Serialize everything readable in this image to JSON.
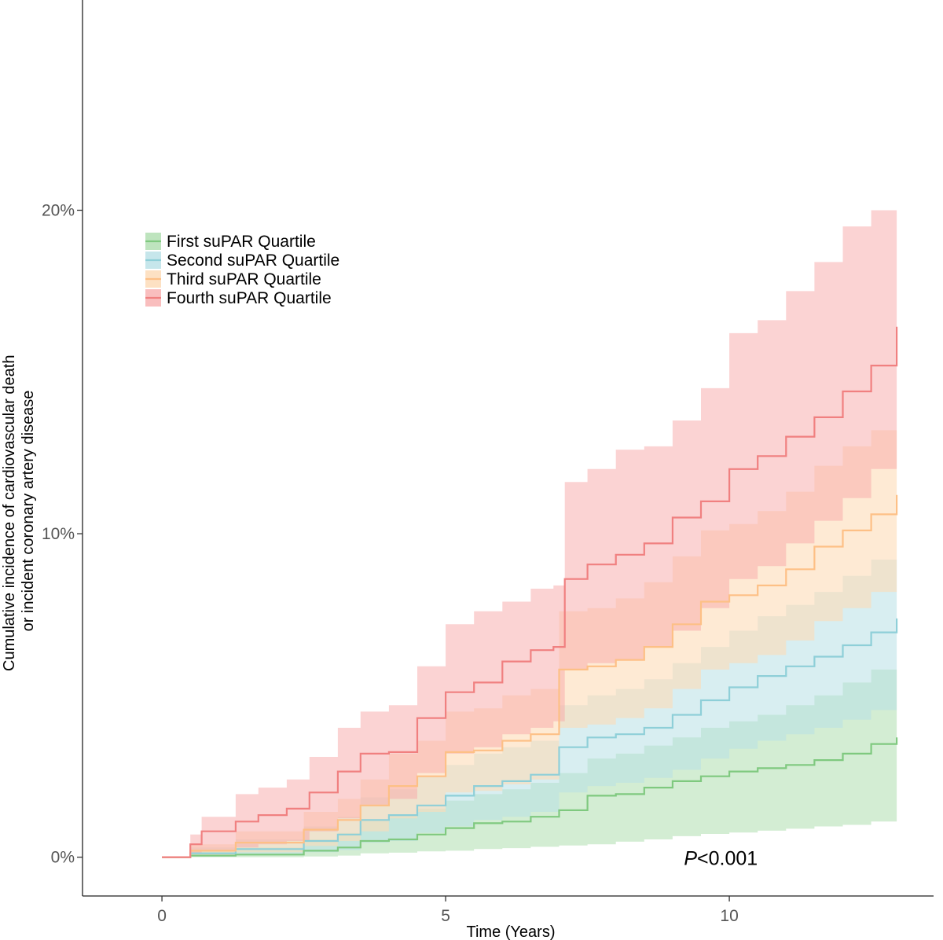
{
  "chart_data": {
    "type": "line",
    "subtype": "cumulative incidence step curves with confidence bands",
    "xlabel": "Time (Years)",
    "ylabel_lines": [
      "Cumulative incidence of cardiovascular death",
      "or incident coronary artery disease"
    ],
    "xlim": [
      -1.4,
      13.6
    ],
    "ylim": [
      -0.012,
      0.265
    ],
    "x_ticks": [
      0,
      5,
      10
    ],
    "x_tick_labels": [
      "0",
      "5",
      "10"
    ],
    "y_ticks": [
      0,
      0.1,
      0.2
    ],
    "y_tick_labels": [
      "0%",
      "10%",
      "20%"
    ],
    "grid": false,
    "legend_position": "top-left",
    "annotation": {
      "italic": "P",
      "rest": "<0.001",
      "x": 9.2,
      "y": 0
    },
    "series": [
      {
        "name": "First suPAR Quartile",
        "color": "#7fc97f",
        "fill": "#a8dba8",
        "fill_opacity": 0.5,
        "x": [
          0,
          0.5,
          1.3,
          2.5,
          3.1,
          3.5,
          4.0,
          4.5,
          5.0,
          5.5,
          6.0,
          6.5,
          7.0,
          7.5,
          8.0,
          8.5,
          9.0,
          9.5,
          10.0,
          10.5,
          11.0,
          11.5,
          12.0,
          12.5,
          12.95
        ],
        "y": [
          0,
          0.0005,
          0.0008,
          0.002,
          0.003,
          0.005,
          0.0055,
          0.007,
          0.009,
          0.0105,
          0.011,
          0.0125,
          0.0145,
          0.019,
          0.0195,
          0.0215,
          0.0235,
          0.025,
          0.0265,
          0.0275,
          0.0285,
          0.03,
          0.032,
          0.035,
          0.037
        ],
        "lower": [
          0,
          0,
          0,
          0.0002,
          0.0005,
          0.0012,
          0.0014,
          0.0018,
          0.002,
          0.0025,
          0.0028,
          0.0032,
          0.0036,
          0.004,
          0.0048,
          0.0055,
          0.0065,
          0.0072,
          0.0076,
          0.0082,
          0.0088,
          0.0095,
          0.01,
          0.011,
          0.0115
        ],
        "upper": [
          0,
          0.002,
          0.003,
          0.0055,
          0.0075,
          0.0115,
          0.013,
          0.015,
          0.0175,
          0.0195,
          0.021,
          0.023,
          0.026,
          0.0305,
          0.032,
          0.0345,
          0.037,
          0.04,
          0.042,
          0.044,
          0.047,
          0.05,
          0.054,
          0.058,
          0.062
        ]
      },
      {
        "name": "Second suPAR Quartile",
        "color": "#8ecfd8",
        "fill": "#b8e0e6",
        "fill_opacity": 0.55,
        "x": [
          0,
          0.5,
          1.3,
          2.5,
          3.1,
          3.5,
          4.0,
          4.5,
          5.0,
          5.5,
          6.0,
          6.5,
          7.0,
          7.5,
          8.0,
          8.5,
          9.0,
          9.5,
          10.0,
          10.5,
          11.0,
          11.5,
          12.0,
          12.5,
          12.95
        ],
        "y": [
          0,
          0.0012,
          0.0025,
          0.005,
          0.007,
          0.0115,
          0.013,
          0.016,
          0.019,
          0.022,
          0.0235,
          0.0255,
          0.034,
          0.037,
          0.038,
          0.04,
          0.044,
          0.0485,
          0.0525,
          0.056,
          0.059,
          0.062,
          0.0655,
          0.0695,
          0.0738
        ],
        "lower": [
          0,
          0.0002,
          0.0006,
          0.0015,
          0.0022,
          0.0045,
          0.005,
          0.0075,
          0.0095,
          0.0115,
          0.0125,
          0.014,
          0.02,
          0.022,
          0.023,
          0.0245,
          0.027,
          0.0305,
          0.0335,
          0.036,
          0.038,
          0.04,
          0.0425,
          0.0455,
          0.0475
        ],
        "upper": [
          0,
          0.003,
          0.0055,
          0.0095,
          0.0125,
          0.0185,
          0.021,
          0.025,
          0.0285,
          0.032,
          0.034,
          0.036,
          0.047,
          0.05,
          0.052,
          0.055,
          0.06,
          0.065,
          0.07,
          0.0745,
          0.078,
          0.082,
          0.087,
          0.092,
          0.098
        ]
      },
      {
        "name": "Third suPAR Quartile",
        "color": "#fdc086",
        "fill": "#fddcb8",
        "fill_opacity": 0.6,
        "x": [
          0,
          0.5,
          1.3,
          2.5,
          3.1,
          3.5,
          4.0,
          4.5,
          5.0,
          5.5,
          6.0,
          6.5,
          7.0,
          7.5,
          8.0,
          8.5,
          9.0,
          9.5,
          10.0,
          10.5,
          11.0,
          11.5,
          12.0,
          12.5,
          12.95
        ],
        "y": [
          0,
          0.002,
          0.0045,
          0.0085,
          0.0115,
          0.016,
          0.022,
          0.025,
          0.0325,
          0.033,
          0.036,
          0.038,
          0.058,
          0.059,
          0.061,
          0.065,
          0.072,
          0.079,
          0.081,
          0.084,
          0.089,
          0.096,
          0.101,
          0.106,
          0.112
        ],
        "lower": [
          0,
          0.0005,
          0.0015,
          0.0035,
          0.005,
          0.008,
          0.012,
          0.014,
          0.02,
          0.0205,
          0.0225,
          0.024,
          0.04,
          0.041,
          0.043,
          0.046,
          0.052,
          0.058,
          0.06,
          0.0625,
          0.067,
          0.073,
          0.077,
          0.082,
          0.087
        ],
        "upper": [
          0,
          0.004,
          0.008,
          0.014,
          0.018,
          0.024,
          0.032,
          0.036,
          0.045,
          0.046,
          0.05,
          0.052,
          0.076,
          0.077,
          0.08,
          0.085,
          0.093,
          0.101,
          0.103,
          0.107,
          0.113,
          0.121,
          0.127,
          0.132,
          0.138
        ]
      },
      {
        "name": "Fourth suPAR Quartile",
        "color": "#f08080",
        "fill": "#f7a8a8",
        "fill_opacity": 0.5,
        "x": [
          0,
          0.5,
          0.7,
          1.3,
          1.7,
          2.2,
          2.6,
          3.1,
          3.5,
          4.0,
          4.5,
          5.0,
          5.5,
          6.0,
          6.5,
          6.9,
          7.1,
          7.5,
          8.0,
          8.5,
          9.0,
          9.5,
          10.0,
          10.5,
          11.0,
          11.5,
          12.0,
          12.5,
          12.95
        ],
        "y": [
          0,
          0.004,
          0.008,
          0.011,
          0.013,
          0.015,
          0.02,
          0.0265,
          0.032,
          0.0325,
          0.043,
          0.051,
          0.054,
          0.0605,
          0.064,
          0.065,
          0.086,
          0.0905,
          0.0935,
          0.097,
          0.105,
          0.11,
          0.12,
          0.124,
          0.13,
          0.136,
          0.144,
          0.152,
          0.164
        ],
        "lower": [
          0,
          0.001,
          0.002,
          0.003,
          0.004,
          0.005,
          0.008,
          0.012,
          0.016,
          0.018,
          0.026,
          0.032,
          0.034,
          0.038,
          0.04,
          0.042,
          0.058,
          0.06,
          0.061,
          0.065,
          0.07,
          0.077,
          0.086,
          0.09,
          0.097,
          0.104,
          0.111,
          0.12,
          0.127
        ],
        "upper": [
          0,
          0.007,
          0.0125,
          0.0195,
          0.0215,
          0.024,
          0.031,
          0.04,
          0.045,
          0.047,
          0.059,
          0.072,
          0.076,
          0.079,
          0.083,
          0.084,
          0.116,
          0.12,
          0.126,
          0.127,
          0.135,
          0.145,
          0.162,
          0.166,
          0.175,
          0.184,
          0.195,
          0.2,
          0.213
        ]
      }
    ]
  }
}
